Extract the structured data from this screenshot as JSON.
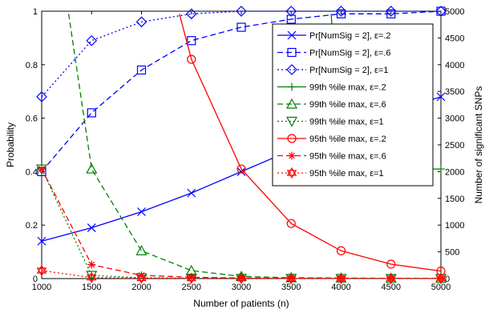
{
  "chart_data": {
    "type": "line",
    "title": "",
    "xlabel": "Number of patients (n)",
    "ylabel_left": "Probability",
    "ylabel_right": "Number of significant SNPs",
    "xlim": [
      1000,
      5000
    ],
    "ylim_left": [
      0,
      1
    ],
    "ylim_right": [
      0,
      5000
    ],
    "x_ticks": [
      "1000",
      "1500",
      "2000",
      "2500",
      "3000",
      "3500",
      "4000",
      "4500",
      "5000"
    ],
    "y_left_ticks": [
      "0",
      "0.2",
      "0.4",
      "0.6",
      "0.8",
      "1"
    ],
    "y_right_ticks": [
      "0",
      "500",
      "1000",
      "1500",
      "2000",
      "2500",
      "3000",
      "3500",
      "4000",
      "4500",
      "5000"
    ],
    "grid": false,
    "legend_position": "top-right",
    "x": [
      1000,
      1500,
      2000,
      2500,
      3000,
      3500,
      4000,
      4500,
      5000
    ],
    "series": [
      {
        "name": "Pr[NumSig = 2], ε=.2",
        "axis": "left",
        "color": "#0000ff",
        "dash": "solid",
        "marker": "x",
        "x": [
          1000,
          1500,
          2000,
          2500,
          3000,
          3500,
          4000,
          4500,
          5000
        ],
        "values": [
          0.14,
          0.19,
          0.25,
          0.32,
          0.4,
          0.48,
          0.56,
          0.62,
          0.68
        ]
      },
      {
        "name": "Pr[NumSig = 2], ε=.6",
        "axis": "left",
        "color": "#0000ff",
        "dash": "dashed",
        "marker": "square",
        "x": [
          1000,
          1500,
          2000,
          2500,
          3000,
          3500,
          4000,
          4500,
          5000
        ],
        "values": [
          0.4,
          0.62,
          0.78,
          0.89,
          0.94,
          0.97,
          0.99,
          0.99,
          1.0
        ]
      },
      {
        "name": "Pr[NumSig = 2], ε=1",
        "axis": "left",
        "color": "#0000ff",
        "dash": "dotted",
        "marker": "diamond",
        "x": [
          1000,
          1500,
          2000,
          2500,
          3000,
          3500,
          4000,
          4500,
          5000
        ],
        "values": [
          0.68,
          0.89,
          0.96,
          0.99,
          1.0,
          1.0,
          1.0,
          1.0,
          1.0
        ]
      },
      {
        "name": "99th %ile max, ε=.2",
        "axis": "right",
        "color": "#008000",
        "dash": "solid",
        "marker": "plus",
        "x": [
          3900,
          4000,
          4500,
          5000
        ],
        "values": [
          4950,
          2050,
          2050,
          2050
        ]
      },
      {
        "name": "99th %ile max, ε=.6",
        "axis": "right",
        "color": "#008000",
        "dash": "dashed",
        "marker": "triangle-up",
        "x": [
          1270,
          1500,
          2000,
          2500,
          3000,
          3500,
          4000,
          4500,
          5000
        ],
        "values": [
          4950,
          2050,
          520,
          150,
          40,
          15,
          10,
          5,
          5
        ]
      },
      {
        "name": "99th %ile max, ε=1",
        "axis": "right",
        "color": "#008000",
        "dash": "dotted",
        "marker": "triangle-down",
        "x": [
          1000,
          1500,
          2000,
          2500,
          3000,
          3500,
          4000,
          4500,
          5000
        ],
        "values": [
          2050,
          60,
          15,
          8,
          5,
          4,
          3,
          2,
          2
        ]
      },
      {
        "name": "95th %ile max, ε=.2",
        "axis": "right",
        "color": "#ff0000",
        "dash": "solid",
        "marker": "circle",
        "x": [
          2380,
          2500,
          3000,
          3500,
          4000,
          4500,
          5000
        ],
        "values": [
          4950,
          4100,
          2050,
          1030,
          520,
          270,
          140
        ]
      },
      {
        "name": "95th %ile max, ε=.6",
        "axis": "right",
        "color": "#ff0000",
        "dash": "dashed",
        "marker": "asterisk",
        "x": [
          1000,
          1500,
          2000,
          2500,
          3000,
          3500,
          4000,
          4500,
          5000
        ],
        "values": [
          2050,
          260,
          60,
          25,
          10,
          6,
          4,
          3,
          2
        ]
      },
      {
        "name": "95th %ile max, ε=1",
        "axis": "right",
        "color": "#ff0000",
        "dash": "dotted",
        "marker": "hexagram",
        "x": [
          1000,
          1500,
          2000,
          2500,
          3000,
          3500,
          4000,
          4500,
          5000
        ],
        "values": [
          150,
          20,
          8,
          5,
          3,
          2,
          2,
          2,
          1
        ]
      }
    ]
  }
}
